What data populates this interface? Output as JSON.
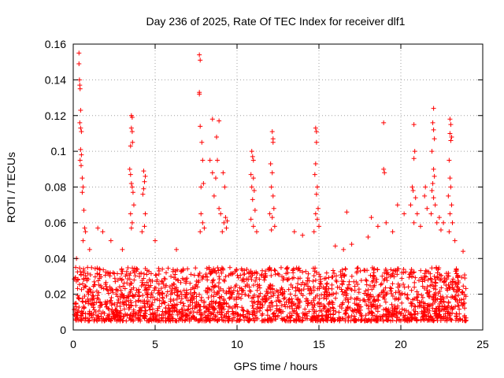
{
  "chart_data": {
    "type": "scatter",
    "title": "Day 236 of 2025, Rate Of TEC Index for receiver dlf1",
    "xlabel": "GPS time / hours",
    "ylabel": "ROTI / TECUs",
    "xlim": [
      0,
      25
    ],
    "ylim": [
      0,
      0.16
    ],
    "xticks": [
      0,
      5,
      10,
      15,
      20,
      25
    ],
    "xtick_labels": [
      "0",
      "5",
      "10",
      "15",
      "20",
      "25"
    ],
    "yticks": [
      0,
      0.02,
      0.04,
      0.06,
      0.08,
      0.1,
      0.12,
      0.14,
      0.16
    ],
    "ytick_labels": [
      "0",
      "0.02",
      "0.04",
      "0.06",
      "0.08",
      "0.1",
      "0.12",
      "0.14",
      "0.16"
    ],
    "grid": true,
    "marker": "+",
    "color": "#ff0000",
    "series": [
      {
        "name": "ROTI",
        "background": {
          "x_range": [
            0.05,
            24.0
          ],
          "y_range": [
            0.005,
            0.035
          ],
          "count": 2200,
          "seed": 236
        },
        "points": [
          [
            0.35,
            0.155
          ],
          [
            0.35,
            0.149
          ],
          [
            0.38,
            0.14
          ],
          [
            0.4,
            0.137
          ],
          [
            0.42,
            0.135
          ],
          [
            0.45,
            0.123
          ],
          [
            0.4,
            0.116
          ],
          [
            0.45,
            0.113
          ],
          [
            0.5,
            0.111
          ],
          [
            0.45,
            0.101
          ],
          [
            0.5,
            0.098
          ],
          [
            0.42,
            0.095
          ],
          [
            0.48,
            0.092
          ],
          [
            0.55,
            0.085
          ],
          [
            0.6,
            0.08
          ],
          [
            0.55,
            0.077
          ],
          [
            0.65,
            0.067
          ],
          [
            0.7,
            0.057
          ],
          [
            0.75,
            0.055
          ],
          [
            0.6,
            0.05
          ],
          [
            0.2,
            0.04
          ],
          [
            0.15,
            0.035
          ],
          [
            1.0,
            0.045
          ],
          [
            1.5,
            0.057
          ],
          [
            1.8,
            0.055
          ],
          [
            2.3,
            0.05
          ],
          [
            3.0,
            0.045
          ],
          [
            3.55,
            0.12
          ],
          [
            3.6,
            0.119
          ],
          [
            3.55,
            0.113
          ],
          [
            3.6,
            0.111
          ],
          [
            3.62,
            0.105
          ],
          [
            3.5,
            0.103
          ],
          [
            3.45,
            0.09
          ],
          [
            3.5,
            0.087
          ],
          [
            3.55,
            0.082
          ],
          [
            3.6,
            0.08
          ],
          [
            3.65,
            0.077
          ],
          [
            3.7,
            0.07
          ],
          [
            3.5,
            0.065
          ],
          [
            3.6,
            0.06
          ],
          [
            3.55,
            0.057
          ],
          [
            4.3,
            0.089
          ],
          [
            4.4,
            0.086
          ],
          [
            4.35,
            0.083
          ],
          [
            4.3,
            0.079
          ],
          [
            4.25,
            0.076
          ],
          [
            4.4,
            0.065
          ],
          [
            4.35,
            0.058
          ],
          [
            4.2,
            0.055
          ],
          [
            5.0,
            0.05
          ],
          [
            6.3,
            0.045
          ],
          [
            7.7,
            0.154
          ],
          [
            7.75,
            0.151
          ],
          [
            7.7,
            0.133
          ],
          [
            7.7,
            0.132
          ],
          [
            7.75,
            0.114
          ],
          [
            7.85,
            0.105
          ],
          [
            7.9,
            0.095
          ],
          [
            7.95,
            0.082
          ],
          [
            7.8,
            0.08
          ],
          [
            7.8,
            0.065
          ],
          [
            7.9,
            0.06
          ],
          [
            8.0,
            0.057
          ],
          [
            7.75,
            0.055
          ],
          [
            8.5,
            0.118
          ],
          [
            8.9,
            0.117
          ],
          [
            8.75,
            0.108
          ],
          [
            8.8,
            0.095
          ],
          [
            8.35,
            0.095
          ],
          [
            8.5,
            0.088
          ],
          [
            8.7,
            0.085
          ],
          [
            8.6,
            0.075
          ],
          [
            8.9,
            0.068
          ],
          [
            9.15,
            0.088
          ],
          [
            9.25,
            0.08
          ],
          [
            9.0,
            0.065
          ],
          [
            9.3,
            0.063
          ],
          [
            9.2,
            0.06
          ],
          [
            9.4,
            0.061
          ],
          [
            9.35,
            0.057
          ],
          [
            9.1,
            0.055
          ],
          [
            10.9,
            0.1
          ],
          [
            10.95,
            0.097
          ],
          [
            11.0,
            0.095
          ],
          [
            10.85,
            0.087
          ],
          [
            11.0,
            0.085
          ],
          [
            10.9,
            0.08
          ],
          [
            11.05,
            0.078
          ],
          [
            10.95,
            0.073
          ],
          [
            11.1,
            0.067
          ],
          [
            10.85,
            0.062
          ],
          [
            11.0,
            0.058
          ],
          [
            11.2,
            0.055
          ],
          [
            12.15,
            0.111
          ],
          [
            12.2,
            0.107
          ],
          [
            12.2,
            0.105
          ],
          [
            12.05,
            0.093
          ],
          [
            12.15,
            0.088
          ],
          [
            12.1,
            0.08
          ],
          [
            12.2,
            0.075
          ],
          [
            12.25,
            0.068
          ],
          [
            12.15,
            0.063
          ],
          [
            12.3,
            0.058
          ],
          [
            12.1,
            0.056
          ],
          [
            12.0,
            0.065
          ],
          [
            13.5,
            0.055
          ],
          [
            14.0,
            0.053
          ],
          [
            14.8,
            0.113
          ],
          [
            14.85,
            0.111
          ],
          [
            14.85,
            0.105
          ],
          [
            14.8,
            0.093
          ],
          [
            14.75,
            0.087
          ],
          [
            14.9,
            0.08
          ],
          [
            14.85,
            0.076
          ],
          [
            14.95,
            0.068
          ],
          [
            14.8,
            0.065
          ],
          [
            14.9,
            0.062
          ],
          [
            15.0,
            0.058
          ],
          [
            14.7,
            0.055
          ],
          [
            16.0,
            0.047
          ],
          [
            16.5,
            0.045
          ],
          [
            16.7,
            0.066
          ],
          [
            17.0,
            0.048
          ],
          [
            18.0,
            0.052
          ],
          [
            18.6,
            0.058
          ],
          [
            18.2,
            0.063
          ],
          [
            18.95,
            0.116
          ],
          [
            18.95,
            0.09
          ],
          [
            19.0,
            0.088
          ],
          [
            19.1,
            0.06
          ],
          [
            19.5,
            0.055
          ],
          [
            19.8,
            0.07
          ],
          [
            20.2,
            0.065
          ],
          [
            20.8,
            0.115
          ],
          [
            20.85,
            0.1
          ],
          [
            20.8,
            0.096
          ],
          [
            20.7,
            0.08
          ],
          [
            20.75,
            0.078
          ],
          [
            20.9,
            0.074
          ],
          [
            20.6,
            0.07
          ],
          [
            21.0,
            0.065
          ],
          [
            20.8,
            0.06
          ],
          [
            21.2,
            0.058
          ],
          [
            21.5,
            0.08
          ],
          [
            21.45,
            0.075
          ],
          [
            21.6,
            0.068
          ],
          [
            22.0,
            0.124
          ],
          [
            21.95,
            0.116
          ],
          [
            22.0,
            0.112
          ],
          [
            22.05,
            0.107
          ],
          [
            21.9,
            0.1
          ],
          [
            22.0,
            0.09
          ],
          [
            22.05,
            0.086
          ],
          [
            21.95,
            0.082
          ],
          [
            21.9,
            0.078
          ],
          [
            22.0,
            0.074
          ],
          [
            22.1,
            0.07
          ],
          [
            21.85,
            0.065
          ],
          [
            22.2,
            0.06
          ],
          [
            22.35,
            0.063
          ],
          [
            22.6,
            0.06
          ],
          [
            22.45,
            0.056
          ],
          [
            23.0,
            0.118
          ],
          [
            23.05,
            0.115
          ],
          [
            23.0,
            0.11
          ],
          [
            23.1,
            0.108
          ],
          [
            23.05,
            0.106
          ],
          [
            22.95,
            0.095
          ],
          [
            23.0,
            0.085
          ],
          [
            23.05,
            0.08
          ],
          [
            22.9,
            0.075
          ],
          [
            23.1,
            0.07
          ],
          [
            23.0,
            0.065
          ],
          [
            23.15,
            0.06
          ],
          [
            22.95,
            0.055
          ],
          [
            23.3,
            0.05
          ],
          [
            23.8,
            0.044
          ]
        ]
      }
    ]
  }
}
